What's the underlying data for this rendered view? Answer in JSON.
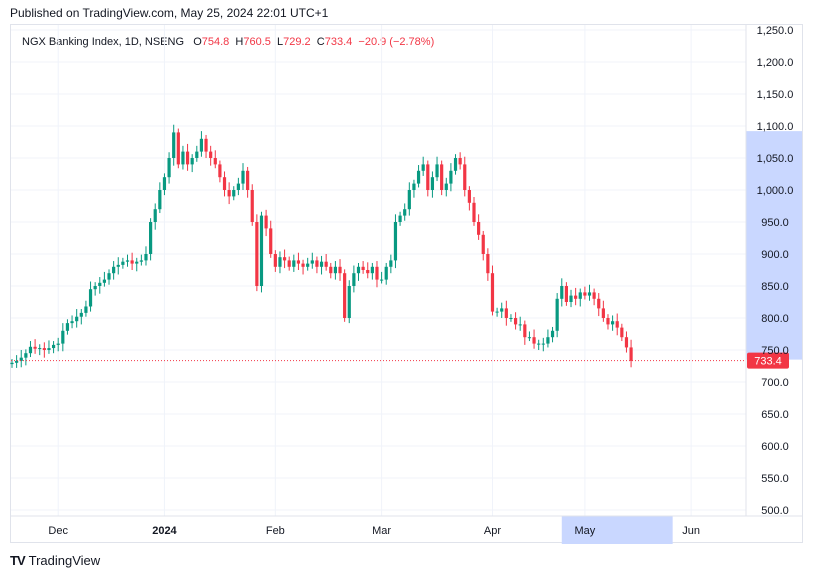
{
  "header": {
    "published": "Published on TradingView.com, May 25, 2024 22:01 UTC+1"
  },
  "legend": {
    "symbol": "NGX Banking Index, 1D, NSENG",
    "open_label": "O",
    "open": "754.8",
    "high_label": "H",
    "high": "760.5",
    "low_label": "L",
    "low": "729.2",
    "close_label": "C",
    "close": "733.4",
    "change": "−20.9 (−2.78%)"
  },
  "footer": {
    "logo": "TV",
    "brand": "TradingView"
  },
  "colors": {
    "up": "#089981",
    "down": "#f23645",
    "grid": "#f0f3fa",
    "highlight": "#c9d7ff",
    "price_badge": "#f23645"
  },
  "chart_data": {
    "type": "candlestick",
    "ylim": [
      500,
      1250
    ],
    "yticks": [
      "1,250.0",
      "1,200.0",
      "1,150.0",
      "1,100.0",
      "1,050.0",
      "1,000.0",
      "950.0",
      "900.0",
      "850.0",
      "800.0",
      "750.0",
      "700.0",
      "650.0",
      "600.0",
      "550.0",
      "500.0"
    ],
    "ytick_values": [
      1250,
      1200,
      1150,
      1100,
      1050,
      1000,
      950,
      900,
      850,
      800,
      750,
      700,
      650,
      600,
      550,
      500
    ],
    "xticks": [
      {
        "label": "Dec",
        "bar": 10
      },
      {
        "label": "2024",
        "bar": 33
      },
      {
        "label": "Feb",
        "bar": 57
      },
      {
        "label": "Mar",
        "bar": 80
      },
      {
        "label": "Apr",
        "bar": 104
      },
      {
        "label": "May",
        "bar": 124
      },
      {
        "label": "Jun",
        "bar": 147
      }
    ],
    "last_price": "733.4",
    "last_value": 733.4,
    "axis_highlight_range": [
      735,
      1092
    ],
    "time_highlight_bars": [
      119,
      143
    ],
    "closes": [
      730,
      733,
      738,
      745,
      755,
      752,
      753,
      750,
      753,
      758,
      760,
      780,
      792,
      795,
      802,
      808,
      818,
      845,
      850,
      855,
      860,
      870,
      880,
      883,
      888,
      890,
      885,
      888,
      890,
      900,
      950,
      970,
      1000,
      1020,
      1050,
      1090,
      1040,
      1060,
      1040,
      1050,
      1060,
      1080,
      1060,
      1050,
      1040,
      1020,
      1000,
      990,
      1000,
      1010,
      1030,
      1000,
      950,
      850,
      960,
      940,
      900,
      880,
      895,
      890,
      880,
      890,
      885,
      880,
      885,
      890,
      880,
      888,
      880,
      870,
      880,
      870,
      800,
      850,
      870,
      880,
      875,
      870,
      880,
      860,
      860,
      880,
      890,
      950,
      960,
      970,
      1000,
      1010,
      1030,
      1040,
      1000,
      1020,
      1040,
      1000,
      1010,
      1030,
      1050,
      1040,
      1000,
      980,
      950,
      930,
      900,
      870,
      810,
      810,
      815,
      800,
      800,
      790,
      790,
      770,
      770,
      760,
      760,
      760,
      770,
      780,
      830,
      850,
      825,
      835,
      830,
      840,
      835,
      840,
      830,
      815,
      800,
      790,
      795,
      785,
      770,
      754,
      733
    ]
  }
}
